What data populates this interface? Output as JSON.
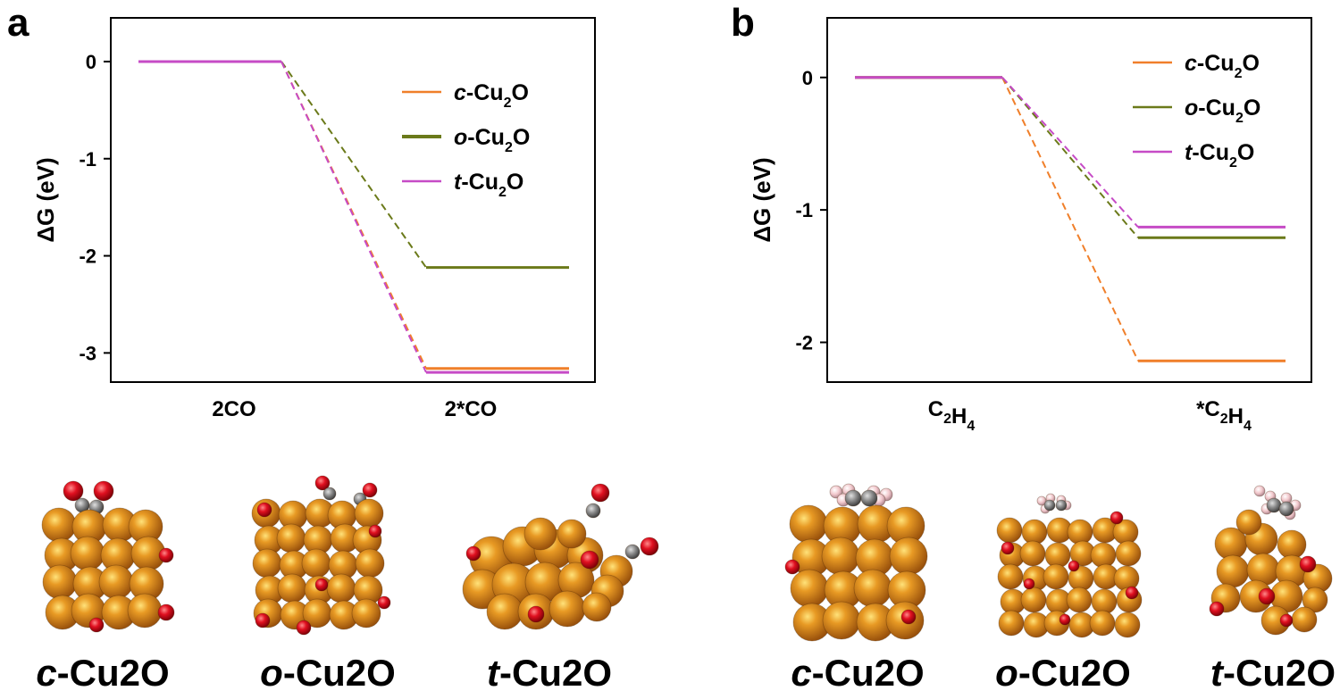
{
  "colors": {
    "c-Cu2O": "#f07f2a",
    "o-Cu2O": "#6b7a1a",
    "t-Cu2O": "#c64bc6",
    "copper_atom": "#d6801a",
    "oxygen_atom": "#e01020",
    "carbon_atom": "#808080",
    "hydrogen_atom": "#f2c8cc"
  },
  "legend_items": [
    {
      "key": "c-Cu2O",
      "prefix": "c",
      "text": "-Cu",
      "sub": "2",
      "suffix": "O"
    },
    {
      "key": "o-Cu2O",
      "prefix": "o",
      "text": "-Cu",
      "sub": "2",
      "suffix": "O"
    },
    {
      "key": "t-Cu2O",
      "prefix": "t",
      "text": "-Cu",
      "sub": "2",
      "suffix": "O"
    }
  ],
  "chart_data": [
    {
      "panel": "a",
      "type": "line",
      "ylabel": "ΔG (eV)",
      "ylim": [
        -3.3,
        0.45
      ],
      "yticks": [
        0,
        -1,
        -2,
        -3
      ],
      "categories": [
        "2CO",
        "2*CO"
      ],
      "legend_order": [
        "c-Cu2O",
        "o-Cu2O",
        "t-Cu2O"
      ],
      "legend_placement": "top-right",
      "grid": false,
      "series": [
        {
          "name": "c-Cu2O",
          "values": [
            0,
            -3.16
          ]
        },
        {
          "name": "o-Cu2O",
          "values": [
            0,
            -2.12
          ]
        },
        {
          "name": "t-Cu2O",
          "values": [
            0,
            -3.2
          ]
        }
      ]
    },
    {
      "panel": "b",
      "type": "line",
      "ylabel": "ΔG (eV)",
      "ylim": [
        -2.3,
        0.45
      ],
      "yticks": [
        0,
        -1,
        -2
      ],
      "categories": [
        "C2H4",
        "*C2H4"
      ],
      "legend_order": [
        "c-Cu2O",
        "o-Cu2O",
        "t-Cu2O"
      ],
      "legend_placement": "top-right",
      "grid": false,
      "series": [
        {
          "name": "c-Cu2O",
          "values": [
            0,
            -2.14
          ]
        },
        {
          "name": "o-Cu2O",
          "values": [
            0,
            -1.21
          ]
        },
        {
          "name": "t-Cu2O",
          "values": [
            0,
            -1.13
          ]
        }
      ]
    }
  ],
  "structures": [
    {
      "panel": "a",
      "prefix": "c",
      "name": "-Cu2O",
      "adsorbate": "2CO"
    },
    {
      "panel": "a",
      "prefix": "o",
      "name": "-Cu2O",
      "adsorbate": "2CO"
    },
    {
      "panel": "a",
      "prefix": "t",
      "name": "-Cu2O",
      "adsorbate": "2CO"
    },
    {
      "panel": "b",
      "prefix": "c",
      "name": "-Cu2O",
      "adsorbate": "C2H4"
    },
    {
      "panel": "b",
      "prefix": "o",
      "name": "-Cu2O",
      "adsorbate": "C2H4"
    },
    {
      "panel": "b",
      "prefix": "t",
      "name": "-Cu2O",
      "adsorbate": "C2H4"
    }
  ]
}
